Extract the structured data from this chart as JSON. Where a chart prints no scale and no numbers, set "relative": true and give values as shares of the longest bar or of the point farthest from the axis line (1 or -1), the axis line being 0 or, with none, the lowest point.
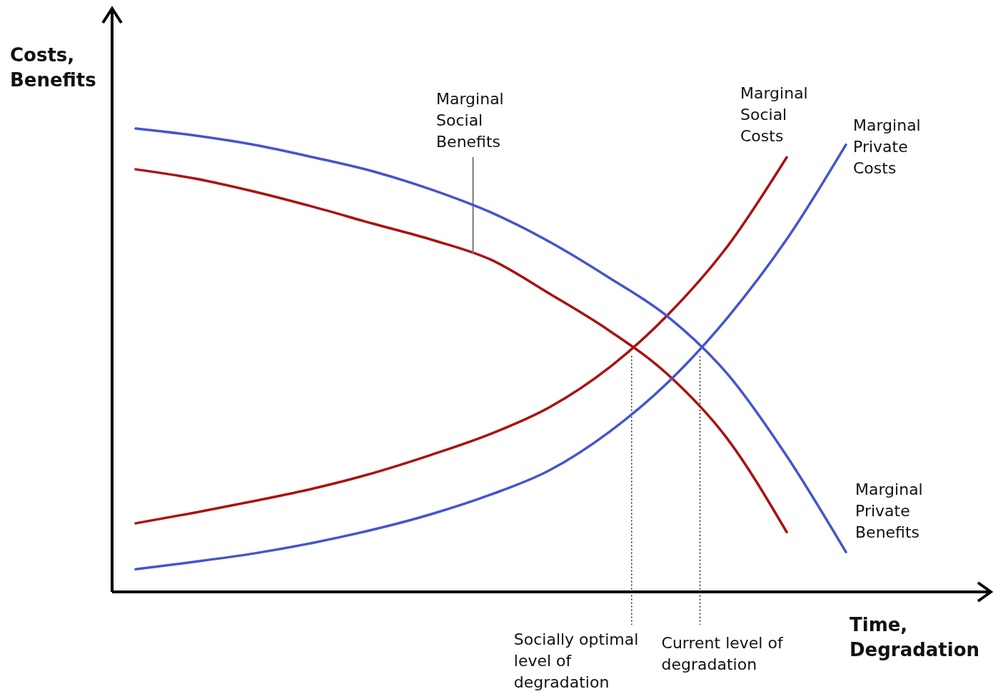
{
  "chart_data": {
    "type": "line",
    "relative": true,
    "xlabel": "Time, Degradation",
    "ylabel": "Costs, Benefits",
    "categories": [
      null,
      null,
      null,
      null,
      null,
      null,
      null,
      null,
      null,
      null,
      null,
      null,
      null
    ],
    "series": [
      {
        "name": "Marginal Social Benefits",
        "color": "#aa1111",
        "values": [
          0.912,
          0.892,
          0.864,
          0.831,
          0.795,
          0.76,
          0.717,
          0.643,
          0.564,
          0.468,
          0.33,
          0.129,
          null
        ]
      },
      {
        "name": "Marginal Social Costs",
        "color": "#aa1111",
        "values": [
          0.148,
          0.171,
          0.196,
          0.223,
          0.256,
          0.296,
          0.341,
          0.399,
          0.484,
          0.599,
          0.746,
          0.938,
          null
        ]
      },
      {
        "name": "Marginal Private Costs",
        "color": "#4455cc",
        "values": [
          0.049,
          0.065,
          0.083,
          0.106,
          0.134,
          0.168,
          0.21,
          0.263,
          0.345,
          0.453,
          0.592,
          0.761,
          0.965
        ]
      },
      {
        "name": "Marginal Private Benefits",
        "color": "#4455cc",
        "values": [
          1.0,
          0.985,
          0.965,
          0.938,
          0.908,
          0.868,
          0.819,
          0.755,
          0.678,
          0.593,
          0.47,
          0.293,
          0.086
        ]
      }
    ],
    "annotations": [
      "Socially optimal level of degradation",
      "Current level of degradation"
    ],
    "grid": false,
    "marker": "none",
    "line_style": "solid"
  }
}
